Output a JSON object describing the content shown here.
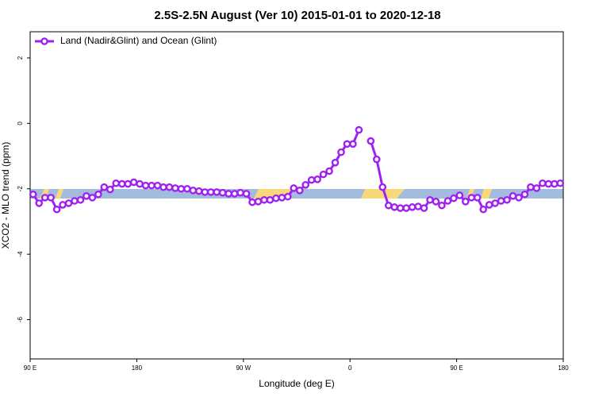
{
  "chart_data": {
    "type": "line",
    "title": "2.5S-2.5N August (Ver 10)   2015-01-01 to 2020-12-18",
    "x_label": "Longitude (deg E)",
    "y_label": "XCO2 - MLO trend (ppm)",
    "xlim": [
      90,
      540
    ],
    "ylim": [
      -7.2,
      2.8
    ],
    "xticks": [
      {
        "value": 90,
        "label": "90 E"
      },
      180,
      {
        "value": 270,
        "label": "90 W"
      },
      {
        "value": 360,
        "label": "0"
      },
      {
        "value": 450,
        "label": "90 E"
      },
      {
        "value": 540,
        "label": "180"
      }
    ],
    "yticks": [
      2,
      0,
      -2,
      -4,
      -6
    ],
    "legend": "top-left",
    "x": [
      92.5,
      97.5,
      102.5,
      107.5,
      112.5,
      117.5,
      122.5,
      127.5,
      132.5,
      137.5,
      142.5,
      147.5,
      152.5,
      157.5,
      162.5,
      167.5,
      172.5,
      177.5,
      182.5,
      187.5,
      192.5,
      197.5,
      202.5,
      207.5,
      212.5,
      217.5,
      222.5,
      227.5,
      232.5,
      237.5,
      242.5,
      247.5,
      252.5,
      257.5,
      262.5,
      267.5,
      272.5,
      277.5,
      282.5,
      287.5,
      292.5,
      297.5,
      302.5,
      307.5,
      312.5,
      317.5,
      322.5,
      327.5,
      332.5,
      337.5,
      342.5,
      347.5,
      352.5,
      357.5,
      362.5,
      367.5,
      372.5,
      377.5,
      382.5,
      387.5,
      392.5,
      397.5,
      402.5,
      407.5,
      412.5,
      417.5,
      422.5,
      427.5,
      432.5,
      437.5,
      442.5,
      447.5,
      452.5,
      457.5,
      462.5,
      467.5,
      472.5,
      477.5,
      482.5,
      487.5,
      492.5,
      497.5,
      502.5,
      507.5,
      512.5,
      517.5,
      522.5,
      527.5,
      532.5,
      537.5
    ],
    "series": [
      {
        "name": "Land (Nadir&Glint) and Ocean (Glint)",
        "color": "#a020f0",
        "values": [
          -2.17,
          -2.44,
          -2.27,
          -2.27,
          -2.63,
          -2.49,
          -2.44,
          -2.37,
          -2.34,
          -2.22,
          -2.27,
          -2.17,
          -1.95,
          -2.02,
          -1.83,
          -1.85,
          -1.85,
          -1.8,
          -1.85,
          -1.9,
          -1.9,
          -1.9,
          -1.95,
          -1.95,
          -1.98,
          -2.0,
          -2.0,
          -2.05,
          -2.07,
          -2.1,
          -2.1,
          -2.1,
          -2.12,
          -2.15,
          -2.15,
          -2.12,
          -2.15,
          -2.41,
          -2.39,
          -2.34,
          -2.34,
          -2.29,
          -2.27,
          -2.24,
          -1.98,
          -2.05,
          -1.88,
          -1.73,
          -1.71,
          -1.56,
          -1.46,
          -1.2,
          -0.88,
          -0.63,
          -0.63,
          -0.2,
          null,
          -0.54,
          -1.1,
          -1.95,
          -2.51,
          -2.56,
          -2.59,
          -2.59,
          -2.56,
          -2.54,
          -2.59,
          -2.34,
          -2.39,
          -2.51,
          -2.37,
          -2.29,
          -2.2,
          -2.39,
          -2.27,
          -2.27,
          -2.63,
          -2.49,
          -2.44,
          -2.37,
          -2.34,
          -2.22,
          -2.27,
          -2.17,
          -1.95,
          -1.98,
          -1.83,
          -1.85,
          -1.85,
          -1.83
        ]
      }
    ]
  }
}
